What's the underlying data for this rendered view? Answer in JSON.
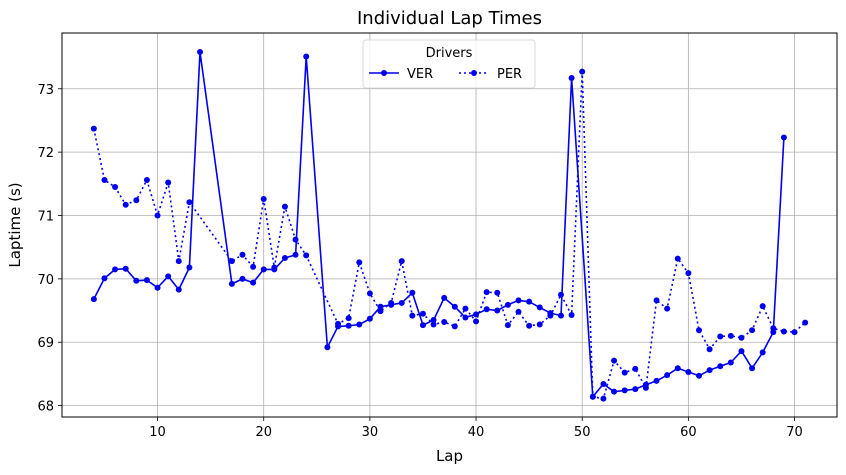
{
  "chart_data": {
    "type": "line",
    "title": "Individual Lap Times",
    "xlabel": "Lap",
    "ylabel": "Laptime (s)",
    "xlim": [
      1,
      74
    ],
    "ylim": [
      67.82,
      73.88
    ],
    "xticks": [
      10,
      20,
      30,
      40,
      50,
      60,
      70
    ],
    "yticks": [
      68,
      69,
      70,
      71,
      72,
      73
    ],
    "grid": true,
    "legend": {
      "title": "Drivers",
      "placement": "top-center",
      "columns": 2
    },
    "series": [
      {
        "name": "VER",
        "color": "#0000ee",
        "line_style": "solid",
        "marker": "circle",
        "points": [
          [
            4,
            69.68
          ],
          [
            5,
            70.01
          ],
          [
            6,
            70.15
          ],
          [
            7,
            70.16
          ],
          [
            8,
            69.97
          ],
          [
            9,
            69.98
          ],
          [
            10,
            69.86
          ],
          [
            11,
            70.04
          ],
          [
            12,
            69.83
          ],
          [
            13,
            70.18
          ],
          [
            14,
            73.58
          ],
          [
            17,
            69.92
          ],
          [
            18,
            70.0
          ],
          [
            19,
            69.94
          ],
          [
            20,
            70.15
          ],
          [
            21,
            70.15
          ],
          [
            22,
            70.33
          ],
          [
            23,
            70.38
          ],
          [
            24,
            73.51
          ],
          [
            26,
            68.92
          ],
          [
            27,
            69.25
          ],
          [
            28,
            69.26
          ],
          [
            29,
            69.28
          ],
          [
            30,
            69.37
          ],
          [
            31,
            69.56
          ],
          [
            32,
            69.59
          ],
          [
            33,
            69.62
          ],
          [
            34,
            69.78
          ],
          [
            35,
            69.27
          ],
          [
            36,
            69.35
          ],
          [
            37,
            69.7
          ],
          [
            38,
            69.56
          ],
          [
            39,
            69.39
          ],
          [
            40,
            69.44
          ],
          [
            41,
            69.52
          ],
          [
            42,
            69.5
          ],
          [
            43,
            69.59
          ],
          [
            44,
            69.66
          ],
          [
            45,
            69.64
          ],
          [
            46,
            69.55
          ],
          [
            47,
            69.46
          ],
          [
            48,
            69.42
          ],
          [
            49,
            73.17
          ],
          [
            51,
            68.14
          ],
          [
            52,
            68.34
          ],
          [
            53,
            68.22
          ],
          [
            54,
            68.24
          ],
          [
            55,
            68.26
          ],
          [
            56,
            68.33
          ],
          [
            57,
            68.39
          ],
          [
            58,
            68.48
          ],
          [
            59,
            68.59
          ],
          [
            60,
            68.53
          ],
          [
            61,
            68.47
          ],
          [
            62,
            68.56
          ],
          [
            63,
            68.62
          ],
          [
            64,
            68.68
          ],
          [
            65,
            68.86
          ],
          [
            66,
            68.59
          ],
          [
            67,
            68.84
          ],
          [
            68,
            69.16
          ],
          [
            69,
            72.23
          ]
        ]
      },
      {
        "name": "PER",
        "color": "#0000ee",
        "line_style": "dotted",
        "marker": "circle",
        "points": [
          [
            4,
            72.37
          ],
          [
            5,
            71.56
          ],
          [
            6,
            71.45
          ],
          [
            7,
            71.17
          ],
          [
            8,
            71.24
          ],
          [
            9,
            71.56
          ],
          [
            10,
            71.0
          ],
          [
            11,
            71.52
          ],
          [
            12,
            70.28
          ],
          [
            13,
            71.21
          ],
          [
            17,
            70.28
          ],
          [
            18,
            70.38
          ],
          [
            19,
            70.19
          ],
          [
            20,
            71.26
          ],
          [
            21,
            70.18
          ],
          [
            22,
            71.14
          ],
          [
            23,
            70.62
          ],
          [
            24,
            70.37
          ],
          [
            27,
            69.29
          ],
          [
            28,
            69.38
          ],
          [
            29,
            70.26
          ],
          [
            30,
            69.77
          ],
          [
            31,
            69.49
          ],
          [
            32,
            69.62
          ],
          [
            33,
            70.28
          ],
          [
            34,
            69.42
          ],
          [
            35,
            69.45
          ],
          [
            36,
            69.28
          ],
          [
            37,
            69.32
          ],
          [
            38,
            69.25
          ],
          [
            39,
            69.53
          ],
          [
            40,
            69.33
          ],
          [
            41,
            69.79
          ],
          [
            42,
            69.78
          ],
          [
            43,
            69.27
          ],
          [
            44,
            69.48
          ],
          [
            45,
            69.26
          ],
          [
            46,
            69.28
          ],
          [
            47,
            69.42
          ],
          [
            48,
            69.75
          ],
          [
            49,
            69.43
          ],
          [
            50,
            73.27
          ],
          [
            51,
            68.14
          ],
          [
            52,
            68.11
          ],
          [
            53,
            68.71
          ],
          [
            54,
            68.52
          ],
          [
            55,
            68.58
          ],
          [
            56,
            68.28
          ],
          [
            57,
            69.66
          ],
          [
            58,
            69.53
          ],
          [
            59,
            70.32
          ],
          [
            60,
            70.09
          ],
          [
            61,
            69.19
          ],
          [
            62,
            68.89
          ],
          [
            63,
            69.09
          ],
          [
            64,
            69.1
          ],
          [
            65,
            69.07
          ],
          [
            66,
            69.19
          ],
          [
            67,
            69.57
          ],
          [
            68,
            69.22
          ],
          [
            69,
            69.17
          ],
          [
            70,
            69.16
          ],
          [
            71,
            69.31
          ]
        ]
      }
    ]
  }
}
